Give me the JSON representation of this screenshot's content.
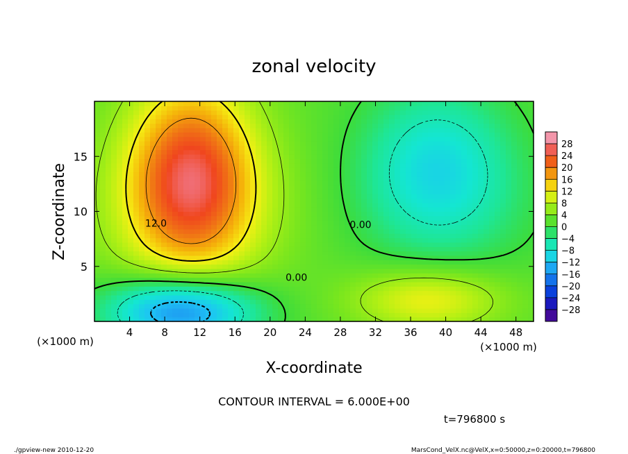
{
  "chart_data": {
    "type": "heatmap",
    "title": "zonal velocity",
    "xlabel": "X-coordinate",
    "ylabel": "Z-coordinate",
    "x_unit_left": "(×1000 m)",
    "x_unit_right": "(×1000 m)",
    "xlim": [
      0,
      50
    ],
    "ylim": [
      0,
      20
    ],
    "x_ticks": [
      4,
      8,
      12,
      16,
      20,
      24,
      28,
      32,
      36,
      40,
      44,
      48
    ],
    "y_ticks": [
      5,
      10,
      15
    ],
    "colorbar_levels": [
      28,
      24,
      20,
      16,
      12,
      8,
      4,
      0,
      -4,
      -8,
      -12,
      -16,
      -20,
      -24,
      -28
    ],
    "colorbar_range": [
      -32,
      32
    ],
    "contour_labels": [
      {
        "text": "12.0",
        "x": 7.0,
        "y": 8.6
      },
      {
        "text": "0.00",
        "x": 30.3,
        "y": 8.5
      },
      {
        "text": "0.00",
        "x": 23.0,
        "y": 3.7
      }
    ],
    "contour_interval_text": "CONTOUR INTERVAL = 6.000E+00",
    "time_text": "t=796800 s",
    "field_features": [
      {
        "x": 11,
        "y": 13.5,
        "value": 20,
        "sx": 5,
        "sy": 6
      },
      {
        "x": 39,
        "y": 14.5,
        "value": -10,
        "sx": 6,
        "sy": 5
      },
      {
        "x": 10,
        "y": 1.0,
        "value": -20,
        "sx": 6,
        "sy": 2.2
      },
      {
        "x": 38,
        "y": 2.0,
        "value": 10,
        "sx": 6,
        "sy": 2
      }
    ]
  },
  "footer": {
    "left": "./gpview-new  2010-12-20",
    "right": "MarsCond_VelX.nc@VelX,x=0:50000,z=0:20000,t=796800"
  }
}
